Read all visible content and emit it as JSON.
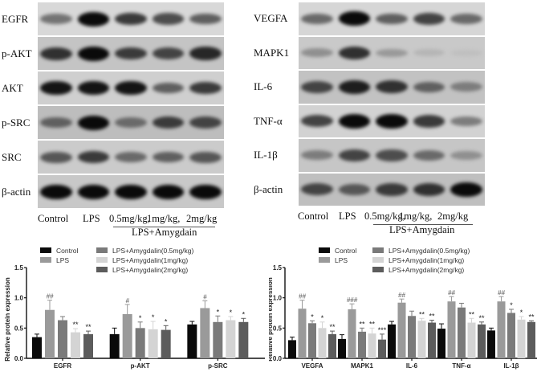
{
  "left_blot": {
    "rows": [
      {
        "label": "EGFR",
        "bg": "#d8d8d8",
        "intensity": [
          0.45,
          1.0,
          0.75,
          0.65,
          0.55
        ]
      },
      {
        "label": "p-AKT",
        "bg": "#c4c4c4",
        "intensity": [
          0.8,
          1.0,
          0.75,
          0.7,
          0.85
        ]
      },
      {
        "label": "AKT",
        "bg": "#cfcfcf",
        "intensity": [
          0.95,
          0.95,
          0.95,
          0.55,
          0.75
        ]
      },
      {
        "label": "p-SRC",
        "bg": "#bdbdbd",
        "intensity": [
          0.55,
          1.0,
          0.5,
          0.75,
          0.7
        ]
      },
      {
        "label": "SRC",
        "bg": "#cbcbcb",
        "intensity": [
          0.6,
          0.75,
          0.5,
          0.55,
          0.6
        ]
      },
      {
        "label": "β-actin",
        "bg": "#c8c8c8",
        "intensity": [
          1.0,
          1.0,
          1.0,
          1.0,
          1.0
        ]
      }
    ],
    "lanes": [
      "Control",
      "LPS",
      "0.5mg/kg,",
      "1mg/kg,",
      "2mg/kg"
    ],
    "group_label": "LPS+Amygdain"
  },
  "right_blot": {
    "rows": [
      {
        "label": "VEGFA",
        "bg": "#d6d6d6",
        "intensity": [
          0.5,
          1.0,
          0.55,
          0.7,
          0.5
        ]
      },
      {
        "label": "MAPK1",
        "bg": "#c9c9c9",
        "intensity": [
          0.3,
          0.8,
          0.25,
          0.1,
          0.05
        ]
      },
      {
        "label": "IL-6",
        "bg": "#c2c2c2",
        "intensity": [
          0.7,
          0.9,
          0.8,
          0.55,
          0.4
        ]
      },
      {
        "label": "TNF-α",
        "bg": "#d2d2d2",
        "intensity": [
          0.7,
          1.0,
          1.0,
          0.75,
          0.4
        ]
      },
      {
        "label": "IL-1β",
        "bg": "#c6c6c6",
        "intensity": [
          0.4,
          0.7,
          0.65,
          0.5,
          0.3
        ]
      },
      {
        "label": "β-actin",
        "bg": "#bfbfbf",
        "intensity": [
          0.7,
          0.6,
          0.75,
          0.8,
          1.0
        ]
      }
    ],
    "lanes": [
      "Control",
      "LPS",
      "0.5mg/kg,",
      "1mg/kg,",
      "2mg/kg"
    ],
    "group_label": "LPS+Amygdain"
  },
  "chart_data": [
    {
      "type": "bar",
      "title": "",
      "xlabel": "",
      "ylabel": "Relative protein expression",
      "ylim": [
        0,
        1.5
      ],
      "yticks": [
        "0.0",
        "0.5",
        "1.0",
        "1.5"
      ],
      "categories": [
        "EGFR",
        "p-AKT",
        "p-SRC"
      ],
      "legend_position": "top",
      "series": [
        {
          "name": "Control",
          "color": "#0a0a0a",
          "values": [
            0.35,
            0.4,
            0.56
          ],
          "errors": [
            0.05,
            0.1,
            0.05
          ],
          "annotations": [
            "",
            "",
            ""
          ]
        },
        {
          "name": "LPS",
          "color": "#9a9a9a",
          "values": [
            0.8,
            0.73,
            0.83
          ],
          "errors": [
            0.16,
            0.16,
            0.12
          ],
          "annotations": [
            "##",
            "#",
            "#"
          ]
        },
        {
          "name": "LPS+Amygdalin(0.5mg/kg)",
          "color": "#7a7a7a",
          "values": [
            0.63,
            0.5,
            0.6
          ],
          "errors": [
            0.06,
            0.1,
            0.1
          ],
          "annotations": [
            "",
            "*",
            "*"
          ]
        },
        {
          "name": "LPS+Amygdalin(1mg/kg)",
          "color": "#d4d4d4",
          "values": [
            0.43,
            0.48,
            0.63
          ],
          "errors": [
            0.06,
            0.13,
            0.06
          ],
          "annotations": [
            "**",
            "*",
            "*"
          ]
        },
        {
          "name": "LPS+Amygdalin(2mg/kg)",
          "color": "#5c5c5c",
          "values": [
            0.4,
            0.47,
            0.6
          ],
          "errors": [
            0.05,
            0.07,
            0.06
          ],
          "annotations": [
            "**",
            "*",
            "*"
          ]
        }
      ]
    },
    {
      "type": "bar",
      "title": "",
      "xlabel": "",
      "ylabel": "Relative protein expression",
      "ylim": [
        0,
        1.5
      ],
      "yticks": [
        "0.0",
        "0.5",
        "1.0",
        "1.5"
      ],
      "categories": [
        "VEGFA",
        "MAPK1",
        "IL-6",
        "TNF-α",
        "IL-1β"
      ],
      "legend_position": "top",
      "series": [
        {
          "name": "Control",
          "color": "#0a0a0a",
          "values": [
            0.3,
            0.32,
            0.56,
            0.49,
            0.46
          ],
          "errors": [
            0.05,
            0.07,
            0.05,
            0.08,
            0.04
          ],
          "annotations": [
            "",
            "",
            "",
            "",
            ""
          ]
        },
        {
          "name": "LPS",
          "color": "#9a9a9a",
          "values": [
            0.82,
            0.81,
            0.92,
            0.94,
            0.94
          ],
          "errors": [
            0.14,
            0.09,
            0.06,
            0.08,
            0.08
          ],
          "annotations": [
            "##",
            "###",
            "##",
            "##",
            "##"
          ]
        },
        {
          "name": "LPS+Amygdalin(0.5mg/kg)",
          "color": "#7a7a7a",
          "values": [
            0.58,
            0.44,
            0.7,
            0.84,
            0.75
          ],
          "errors": [
            0.04,
            0.06,
            0.08,
            0.07,
            0.06
          ],
          "annotations": [
            "*",
            "**",
            "",
            "",
            "*"
          ]
        },
        {
          "name": "LPS+Amygdalin(1mg/kg)",
          "color": "#d4d4d4",
          "values": [
            0.5,
            0.41,
            0.62,
            0.59,
            0.64
          ],
          "errors": [
            0.1,
            0.09,
            0.04,
            0.07,
            0.05
          ],
          "annotations": [
            "*",
            "**",
            "**",
            "**",
            "*"
          ]
        },
        {
          "name": "LPS+Amygdalin(2mg/kg)",
          "color": "#5c5c5c",
          "values": [
            0.4,
            0.31,
            0.59,
            0.56,
            0.6
          ],
          "errors": [
            0.05,
            0.09,
            0.04,
            0.04,
            0.02
          ],
          "annotations": [
            "**",
            "***",
            "**",
            "**",
            "**"
          ]
        }
      ]
    }
  ]
}
